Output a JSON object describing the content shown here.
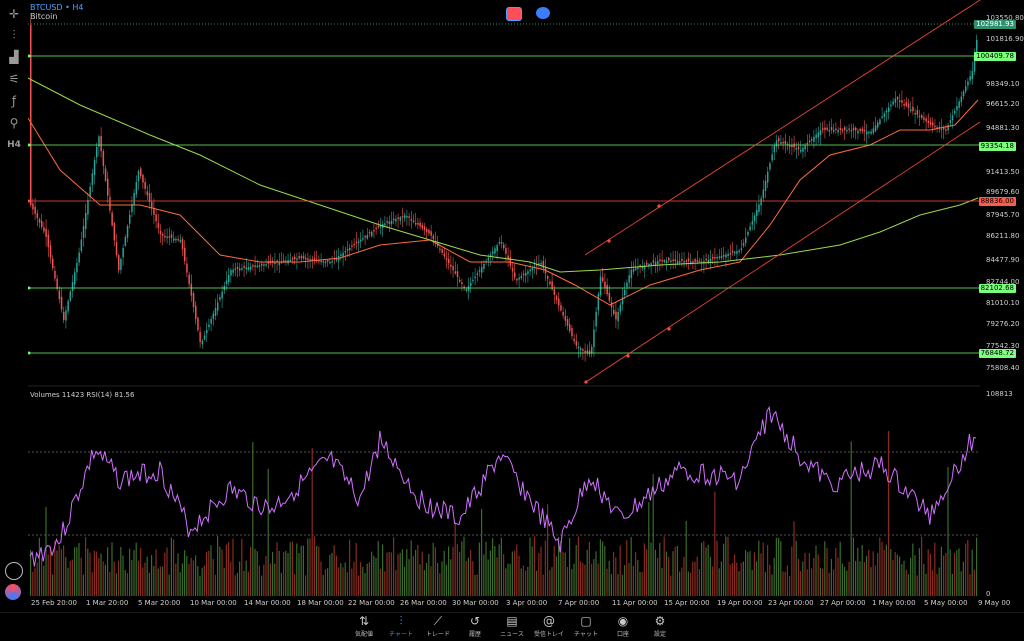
{
  "symbol": {
    "title": "BTCUSD • H4",
    "subtitle": "Bitcoin"
  },
  "toolbar": [
    {
      "name": "crosshair-icon",
      "glyph": "✛"
    },
    {
      "name": "candles-icon",
      "glyph": "⫶"
    },
    {
      "name": "indicators-icon",
      "glyph": "▟"
    },
    {
      "name": "settings-sliders-icon",
      "glyph": "⚟"
    },
    {
      "name": "function-icon",
      "glyph": "ƒ"
    },
    {
      "name": "objects-icon",
      "glyph": "⚲"
    },
    {
      "name": "timeframe-label",
      "glyph": "H4"
    }
  ],
  "price_axis": {
    "labels": [
      "103550.80",
      "101816.90",
      "98349.10",
      "96615.20",
      "94881.30",
      "91413.50",
      "89679.60",
      "87945.70",
      "86211.80",
      "84477.90",
      "82744.00",
      "81010.10",
      "79276.20",
      "77542.30",
      "75808.40"
    ],
    "tags": [
      {
        "value": "102981.93",
        "color": "#2f8f6f",
        "text_color": "#ffffff"
      },
      {
        "value": "100409.78",
        "color": "#7cff7c",
        "text_color": "#000000"
      },
      {
        "value": "93354.18",
        "color": "#7cff7c",
        "text_color": "#000000"
      },
      {
        "value": "88836.00",
        "color": "#ff5a4a",
        "text_color": "#000000"
      },
      {
        "value": "82102.68",
        "color": "#7cff7c",
        "text_color": "#000000"
      },
      {
        "value": "76848.72",
        "color": "#7cff7c",
        "text_color": "#000000"
      }
    ]
  },
  "sub_window": {
    "header": "Volumes 11423  RSI(14) 81.56",
    "axis_top": "108813",
    "axis_bottom": "0"
  },
  "date_axis": [
    "25 Feb 20:00",
    "1 Mar 20:00",
    "5 Mar 20:00",
    "10 Mar 00:00",
    "14 Mar 00:00",
    "18 Mar 00:00",
    "22 Mar 00:00",
    "26 Mar 00:00",
    "30 Mar 00:00",
    "3 Apr 00:00",
    "7 Apr 00:00",
    "11 Apr 00:00",
    "15 Apr 00:00",
    "19 Apr 00:00",
    "23 Apr 00:00",
    "27 Apr 00:00",
    "1 May 00:00",
    "5 May 00:00",
    "9 May 00"
  ],
  "nav": [
    {
      "label": "気配値",
      "glyph": "⇅"
    },
    {
      "label": "チャート",
      "glyph": "⫶",
      "active": true
    },
    {
      "label": "トレード",
      "glyph": "⟋"
    },
    {
      "label": "履歴",
      "glyph": "↺"
    },
    {
      "label": "ニュース",
      "glyph": "▤"
    },
    {
      "label": "受信トレイ",
      "glyph": "@"
    },
    {
      "label": "チャット",
      "glyph": "▢"
    },
    {
      "label": "口座",
      "glyph": "◉"
    },
    {
      "label": "設定",
      "glyph": "⚙"
    }
  ],
  "colors": {
    "bull": "#26a69a",
    "bear": "#ef5350",
    "ma_fast": "#ff6a3d",
    "ma_slow": "#9ad94a",
    "hline": "#6dff6d",
    "redline": "#ff4a3a",
    "rsi": "#d070ff"
  }
}
